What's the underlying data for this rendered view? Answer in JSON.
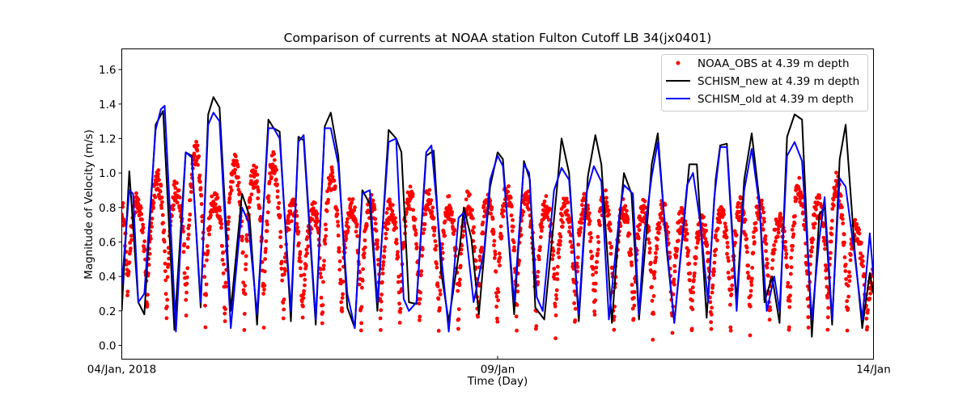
{
  "chart_data": {
    "type": "line",
    "title": "Comparison of currents at NOAA station Fulton Cutoff LB 34(jx0401)",
    "xlabel": "Time (Day)",
    "ylabel": "Magnitude of Velocity (m/s)",
    "xlim_days": [
      0,
      10
    ],
    "ylim": [
      -0.08,
      1.72
    ],
    "x_ticks": [
      {
        "day": 0,
        "label": "04/Jan, 2018"
      },
      {
        "day": 5,
        "label": "09/Jan"
      },
      {
        "day": 10,
        "label": "14/Jan"
      }
    ],
    "y_ticks": [
      {
        "value": 0.0,
        "label": "0.0"
      },
      {
        "value": 0.2,
        "label": "0.2"
      },
      {
        "value": 0.4,
        "label": "0.4"
      },
      {
        "value": 0.6,
        "label": "0.6"
      },
      {
        "value": 0.8,
        "label": "0.8"
      },
      {
        "value": 1.0,
        "label": "1.0"
      },
      {
        "value": 1.2,
        "label": "1.2"
      },
      {
        "value": 1.4,
        "label": "1.4"
      },
      {
        "value": 1.6,
        "label": "1.6"
      }
    ],
    "grid": false,
    "legend_position": "top-right",
    "series": [
      {
        "name": "NOAA_OBS at 4.39 m depth",
        "kind": "scatter",
        "color": "#ff0000",
        "note": "dense 6-min observations; envelope per half tidal cycle",
        "envelope": [
          {
            "day": 0.05,
            "low": 0.2,
            "high": 0.9
          },
          {
            "day": 0.25,
            "low": 0.1,
            "high": 0.8
          },
          {
            "day": 0.5,
            "low": 0.08,
            "high": 0.97
          },
          {
            "day": 0.75,
            "low": 0.05,
            "high": 0.9
          },
          {
            "day": 1.0,
            "low": 0.1,
            "high": 1.14
          },
          {
            "day": 1.25,
            "low": 0.05,
            "high": 0.82
          },
          {
            "day": 1.5,
            "low": 0.04,
            "high": 1.07
          },
          {
            "day": 1.75,
            "low": 0.05,
            "high": 0.98
          },
          {
            "day": 2.0,
            "low": 0.08,
            "high": 1.07
          },
          {
            "day": 2.25,
            "low": 0.05,
            "high": 0.8
          },
          {
            "day": 2.5,
            "low": 0.03,
            "high": 0.72
          },
          {
            "day": 2.75,
            "low": 0.03,
            "high": 1.0
          },
          {
            "day": 3.0,
            "low": 0.05,
            "high": 0.8
          },
          {
            "day": 3.25,
            "low": 0.05,
            "high": 0.82
          },
          {
            "day": 3.5,
            "low": 0.04,
            "high": 0.78
          },
          {
            "day": 3.75,
            "low": 0.02,
            "high": 0.84
          },
          {
            "day": 4.0,
            "low": 0.05,
            "high": 0.9
          },
          {
            "day": 4.25,
            "low": 0.03,
            "high": 0.77
          },
          {
            "day": 4.5,
            "low": 0.05,
            "high": 0.85
          },
          {
            "day": 4.75,
            "low": 0.05,
            "high": 0.8
          },
          {
            "day": 5.0,
            "low": 0.04,
            "high": 0.87
          },
          {
            "day": 5.25,
            "low": 0.04,
            "high": 0.9
          },
          {
            "day": 5.5,
            "low": 0.05,
            "high": 0.82
          },
          {
            "day": 5.75,
            "low": 0.06,
            "high": 0.8
          },
          {
            "day": 6.0,
            "low": 0.05,
            "high": 0.8
          },
          {
            "day": 6.25,
            "low": 0.05,
            "high": 0.82
          },
          {
            "day": 6.5,
            "low": 0.04,
            "high": 0.85
          },
          {
            "day": 6.75,
            "low": 0.05,
            "high": 0.75
          },
          {
            "day": 7.0,
            "low": 0.05,
            "high": 0.8
          },
          {
            "day": 7.25,
            "low": 0.04,
            "high": 0.78
          },
          {
            "day": 7.5,
            "low": 0.05,
            "high": 0.72
          },
          {
            "day": 7.75,
            "low": 0.05,
            "high": 0.7
          },
          {
            "day": 8.0,
            "low": 0.06,
            "high": 0.75
          },
          {
            "day": 8.25,
            "low": 0.05,
            "high": 0.8
          },
          {
            "day": 8.5,
            "low": 0.05,
            "high": 0.8
          },
          {
            "day": 8.75,
            "low": 0.04,
            "high": 0.7
          },
          {
            "day": 9.0,
            "low": 0.05,
            "high": 0.92
          },
          {
            "day": 9.25,
            "low": 0.05,
            "high": 0.8
          },
          {
            "day": 9.5,
            "low": 0.02,
            "high": 0.95
          },
          {
            "day": 9.75,
            "low": 0.05,
            "high": 0.7
          },
          {
            "day": 10.0,
            "low": 0.1,
            "high": 0.4
          }
        ]
      },
      {
        "name": "SCHISM_new at 4.39 m depth",
        "kind": "line",
        "color": "#000000",
        "points": [
          [
            0.0,
            0.2
          ],
          [
            0.1,
            1.01
          ],
          [
            0.22,
            0.25
          ],
          [
            0.3,
            0.18
          ],
          [
            0.45,
            1.28
          ],
          [
            0.55,
            1.36
          ],
          [
            0.7,
            0.09
          ],
          [
            0.85,
            1.12
          ],
          [
            0.93,
            1.1
          ],
          [
            1.05,
            0.22
          ],
          [
            1.15,
            1.34
          ],
          [
            1.22,
            1.44
          ],
          [
            1.3,
            1.38
          ],
          [
            1.45,
            0.2
          ],
          [
            1.6,
            0.88
          ],
          [
            1.7,
            0.75
          ],
          [
            1.8,
            0.12
          ],
          [
            1.95,
            1.31
          ],
          [
            2.02,
            1.26
          ],
          [
            2.1,
            1.24
          ],
          [
            2.25,
            0.14
          ],
          [
            2.35,
            1.21
          ],
          [
            2.42,
            1.19
          ],
          [
            2.58,
            0.12
          ],
          [
            2.7,
            1.27
          ],
          [
            2.78,
            1.35
          ],
          [
            2.88,
            1.1
          ],
          [
            3.0,
            0.22
          ],
          [
            3.1,
            0.1
          ],
          [
            3.2,
            0.9
          ],
          [
            3.3,
            0.82
          ],
          [
            3.4,
            0.2
          ],
          [
            3.55,
            1.25
          ],
          [
            3.65,
            1.2
          ],
          [
            3.72,
            1.12
          ],
          [
            3.82,
            0.25
          ],
          [
            3.92,
            0.24
          ],
          [
            4.05,
            1.1
          ],
          [
            4.15,
            1.13
          ],
          [
            4.25,
            0.42
          ],
          [
            4.35,
            0.14
          ],
          [
            4.5,
            0.58
          ],
          [
            4.55,
            0.8
          ],
          [
            4.65,
            0.62
          ],
          [
            4.75,
            0.18
          ],
          [
            4.9,
            0.92
          ],
          [
            5.0,
            1.12
          ],
          [
            5.07,
            1.08
          ],
          [
            5.22,
            0.18
          ],
          [
            5.35,
            1.07
          ],
          [
            5.43,
            0.96
          ],
          [
            5.5,
            0.22
          ],
          [
            5.62,
            0.15
          ],
          [
            5.78,
            0.87
          ],
          [
            5.85,
            1.2
          ],
          [
            5.95,
            1.0
          ],
          [
            6.08,
            0.14
          ],
          [
            6.2,
            0.98
          ],
          [
            6.3,
            1.22
          ],
          [
            6.38,
            1.05
          ],
          [
            6.52,
            0.13
          ],
          [
            6.62,
            0.72
          ],
          [
            6.68,
            1.0
          ],
          [
            6.78,
            0.88
          ],
          [
            6.88,
            0.15
          ],
          [
            6.97,
            0.6
          ],
          [
            7.05,
            1.05
          ],
          [
            7.13,
            1.23
          ],
          [
            7.25,
            0.55
          ],
          [
            7.35,
            0.13
          ],
          [
            7.48,
            0.72
          ],
          [
            7.55,
            1.05
          ],
          [
            7.65,
            1.05
          ],
          [
            7.78,
            0.16
          ],
          [
            7.9,
            0.96
          ],
          [
            7.96,
            1.16
          ],
          [
            8.05,
            1.17
          ],
          [
            8.18,
            0.25
          ],
          [
            8.28,
            0.96
          ],
          [
            8.38,
            1.23
          ],
          [
            8.48,
            0.85
          ],
          [
            8.55,
            0.25
          ],
          [
            8.65,
            0.4
          ],
          [
            8.75,
            0.13
          ],
          [
            8.85,
            1.21
          ],
          [
            8.95,
            1.34
          ],
          [
            9.05,
            1.31
          ],
          [
            9.18,
            0.05
          ],
          [
            9.28,
            0.76
          ],
          [
            9.35,
            0.8
          ],
          [
            9.45,
            0.12
          ],
          [
            9.55,
            1.08
          ],
          [
            9.63,
            1.28
          ],
          [
            9.75,
            0.55
          ],
          [
            9.85,
            0.1
          ],
          [
            9.95,
            0.42
          ],
          [
            10.0,
            0.3
          ]
        ]
      },
      {
        "name": "SCHISM_old at 4.39 m depth",
        "kind": "line",
        "color": "#0000ff",
        "points": [
          [
            0.0,
            0.35
          ],
          [
            0.1,
            0.9
          ],
          [
            0.15,
            0.88
          ],
          [
            0.22,
            0.25
          ],
          [
            0.3,
            0.3
          ],
          [
            0.45,
            1.25
          ],
          [
            0.52,
            1.37
          ],
          [
            0.57,
            1.39
          ],
          [
            0.72,
            0.08
          ],
          [
            0.85,
            1.12
          ],
          [
            0.93,
            1.09
          ],
          [
            1.05,
            0.25
          ],
          [
            1.15,
            1.28
          ],
          [
            1.22,
            1.35
          ],
          [
            1.3,
            1.3
          ],
          [
            1.45,
            0.1
          ],
          [
            1.6,
            0.8
          ],
          [
            1.68,
            0.72
          ],
          [
            1.8,
            0.18
          ],
          [
            1.95,
            1.26
          ],
          [
            2.02,
            1.26
          ],
          [
            2.1,
            1.2
          ],
          [
            2.25,
            0.2
          ],
          [
            2.35,
            1.18
          ],
          [
            2.42,
            1.22
          ],
          [
            2.58,
            0.15
          ],
          [
            2.7,
            1.26
          ],
          [
            2.78,
            1.26
          ],
          [
            2.88,
            1.05
          ],
          [
            3.0,
            0.3
          ],
          [
            3.1,
            0.1
          ],
          [
            3.2,
            0.88
          ],
          [
            3.3,
            0.9
          ],
          [
            3.4,
            0.25
          ],
          [
            3.55,
            1.18
          ],
          [
            3.65,
            1.2
          ],
          [
            3.75,
            0.27
          ],
          [
            3.82,
            0.2
          ],
          [
            3.92,
            0.25
          ],
          [
            4.05,
            1.12
          ],
          [
            4.12,
            1.16
          ],
          [
            4.25,
            0.52
          ],
          [
            4.35,
            0.08
          ],
          [
            4.48,
            0.74
          ],
          [
            4.55,
            0.77
          ],
          [
            4.68,
            0.25
          ],
          [
            4.82,
            0.55
          ],
          [
            4.9,
            0.96
          ],
          [
            5.0,
            1.1
          ],
          [
            5.07,
            1.04
          ],
          [
            5.22,
            0.25
          ],
          [
            5.35,
            1.05
          ],
          [
            5.42,
            1.0
          ],
          [
            5.52,
            0.28
          ],
          [
            5.6,
            0.2
          ],
          [
            5.75,
            0.9
          ],
          [
            5.85,
            1.03
          ],
          [
            5.95,
            0.96
          ],
          [
            6.08,
            0.18
          ],
          [
            6.18,
            0.88
          ],
          [
            6.28,
            1.04
          ],
          [
            6.38,
            0.95
          ],
          [
            6.48,
            0.15
          ],
          [
            6.62,
            0.76
          ],
          [
            6.68,
            0.93
          ],
          [
            6.8,
            0.88
          ],
          [
            6.88,
            0.18
          ],
          [
            6.95,
            0.65
          ],
          [
            7.05,
            0.98
          ],
          [
            7.13,
            1.18
          ],
          [
            7.25,
            0.58
          ],
          [
            7.35,
            0.13
          ],
          [
            7.45,
            0.6
          ],
          [
            7.52,
            0.93
          ],
          [
            7.6,
            1.0
          ],
          [
            7.7,
            0.7
          ],
          [
            7.8,
            0.25
          ],
          [
            7.88,
            0.85
          ],
          [
            7.96,
            1.15
          ],
          [
            8.05,
            1.15
          ],
          [
            8.18,
            0.2
          ],
          [
            8.28,
            0.9
          ],
          [
            8.38,
            1.14
          ],
          [
            8.48,
            0.82
          ],
          [
            8.58,
            0.2
          ],
          [
            8.68,
            0.4
          ],
          [
            8.75,
            0.2
          ],
          [
            8.85,
            1.1
          ],
          [
            8.95,
            1.18
          ],
          [
            9.05,
            1.07
          ],
          [
            9.18,
            0.15
          ],
          [
            9.28,
            0.62
          ],
          [
            9.35,
            0.86
          ],
          [
            9.45,
            0.15
          ],
          [
            9.55,
            0.97
          ],
          [
            9.63,
            0.92
          ],
          [
            9.75,
            0.52
          ],
          [
            9.85,
            0.15
          ],
          [
            9.95,
            0.65
          ],
          [
            10.0,
            0.4
          ]
        ]
      }
    ]
  }
}
